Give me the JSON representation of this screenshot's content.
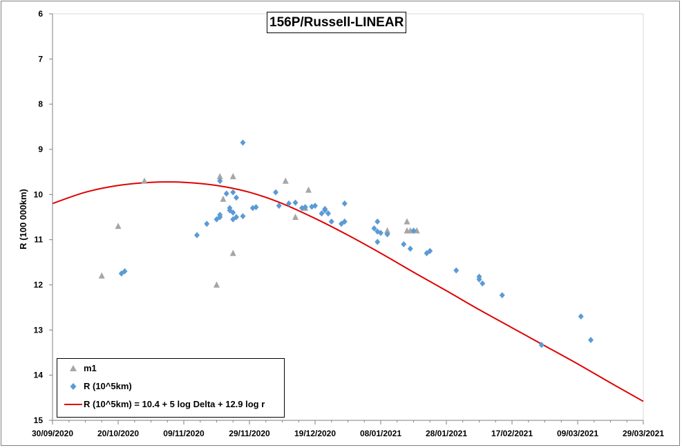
{
  "chart_data": {
    "type": "scatter",
    "title": "156P/Russell-LINEAR",
    "xlabel": "",
    "ylabel": "R (100 000km)",
    "x_type": "date",
    "xlim": [
      "30/09/2020",
      "29/03/2021"
    ],
    "x_ticks": [
      "30/09/2020",
      "20/10/2020",
      "09/11/2020",
      "29/11/2020",
      "19/12/2020",
      "08/01/2021",
      "28/01/2021",
      "17/02/2021",
      "09/03/2021",
      "29/03/2021"
    ],
    "ylim": [
      6,
      15
    ],
    "y_inverted": true,
    "y_ticks": [
      6,
      7,
      8,
      9,
      10,
      11,
      12,
      13,
      14,
      15
    ],
    "grid": false,
    "legend": "bottom-left",
    "series": [
      {
        "name": "m1",
        "marker": "triangle",
        "color": "#a6a6a6",
        "points": [
          [
            "2020-10-15",
            11.8
          ],
          [
            "2020-10-20",
            10.7
          ],
          [
            "2020-10-28",
            9.7
          ],
          [
            "2020-11-19",
            12.0
          ],
          [
            "2020-11-20",
            9.6
          ],
          [
            "2020-11-21",
            10.1
          ],
          [
            "2020-11-24",
            11.3
          ],
          [
            "2020-11-24",
            9.6
          ],
          [
            "2020-12-10",
            9.7
          ],
          [
            "2020-12-13",
            10.5
          ],
          [
            "2020-12-16",
            10.3
          ],
          [
            "2020-12-17",
            9.9
          ],
          [
            "2021-01-10",
            10.8
          ],
          [
            "2021-01-16",
            10.6
          ],
          [
            "2021-01-16",
            10.8
          ],
          [
            "2021-01-17",
            10.8
          ],
          [
            "2021-01-19",
            10.8
          ]
        ]
      },
      {
        "name": "R (10^5km)",
        "marker": "diamond",
        "color": "#5b9bd5",
        "points": [
          [
            "2020-10-21",
            11.75
          ],
          [
            "2020-10-22",
            11.7
          ],
          [
            "2020-11-13",
            10.9
          ],
          [
            "2020-11-16",
            10.65
          ],
          [
            "2020-11-19",
            10.55
          ],
          [
            "2020-11-20",
            10.5
          ],
          [
            "2020-11-20",
            10.45
          ],
          [
            "2020-11-20",
            9.7
          ],
          [
            "2020-11-22",
            9.98
          ],
          [
            "2020-11-23",
            10.3
          ],
          [
            "2020-11-23",
            10.35
          ],
          [
            "2020-11-24",
            10.4
          ],
          [
            "2020-11-24",
            9.95
          ],
          [
            "2020-11-24",
            10.55
          ],
          [
            "2020-11-25",
            10.5
          ],
          [
            "2020-11-25",
            10.07
          ],
          [
            "2020-11-27",
            10.48
          ],
          [
            "2020-11-27",
            8.85
          ],
          [
            "2020-11-30",
            10.3
          ],
          [
            "2020-12-01",
            10.28
          ],
          [
            "2020-12-07",
            9.95
          ],
          [
            "2020-12-08",
            10.25
          ],
          [
            "2020-12-11",
            10.2
          ],
          [
            "2020-12-13",
            10.18
          ],
          [
            "2020-12-15",
            10.3
          ],
          [
            "2020-12-16",
            10.28
          ],
          [
            "2020-12-18",
            10.27
          ],
          [
            "2020-12-19",
            10.25
          ],
          [
            "2020-12-21",
            10.42
          ],
          [
            "2020-12-22",
            10.32
          ],
          [
            "2020-12-22",
            10.35
          ],
          [
            "2020-12-23",
            10.42
          ],
          [
            "2020-12-24",
            10.6
          ],
          [
            "2020-12-27",
            10.65
          ],
          [
            "2020-12-28",
            10.6
          ],
          [
            "2020-12-28",
            10.2
          ],
          [
            "2021-01-06",
            10.75
          ],
          [
            "2021-01-07",
            10.82
          ],
          [
            "2021-01-07",
            10.6
          ],
          [
            "2021-01-07",
            11.05
          ],
          [
            "2021-01-08",
            10.85
          ],
          [
            "2021-01-10",
            10.88
          ],
          [
            "2021-01-15",
            11.1
          ],
          [
            "2021-01-17",
            11.2
          ],
          [
            "2021-01-18",
            10.8
          ],
          [
            "2021-01-22",
            11.3
          ],
          [
            "2021-01-23",
            11.25
          ],
          [
            "2021-01-31",
            11.68
          ],
          [
            "2021-02-07",
            11.82
          ],
          [
            "2021-02-07",
            11.88
          ],
          [
            "2021-02-08",
            11.97
          ],
          [
            "2021-02-14",
            12.23
          ],
          [
            "2021-02-26",
            13.33
          ],
          [
            "2021-03-10",
            12.7
          ],
          [
            "2021-03-13",
            13.22
          ]
        ]
      },
      {
        "name": "R (10^5km) = 10.4 + 5 log Delta + 12.9 log r",
        "marker": "line",
        "color": "#e00000",
        "points": [
          [
            "2020-09-30",
            10.2
          ],
          [
            "2020-10-10",
            9.95
          ],
          [
            "2020-10-20",
            9.8
          ],
          [
            "2020-10-30",
            9.73
          ],
          [
            "2020-11-09",
            9.73
          ],
          [
            "2020-11-19",
            9.8
          ],
          [
            "2020-11-29",
            9.95
          ],
          [
            "2020-12-09",
            10.2
          ],
          [
            "2020-12-19",
            10.53
          ],
          [
            "2020-12-29",
            10.9
          ],
          [
            "2021-01-08",
            11.3
          ],
          [
            "2021-01-18",
            11.72
          ],
          [
            "2021-01-28",
            12.13
          ],
          [
            "2021-02-07",
            12.55
          ],
          [
            "2021-02-17",
            12.95
          ],
          [
            "2021-02-27",
            13.35
          ],
          [
            "2021-03-09",
            13.75
          ],
          [
            "2021-03-19",
            14.17
          ],
          [
            "2021-03-29",
            14.58
          ]
        ]
      }
    ]
  }
}
